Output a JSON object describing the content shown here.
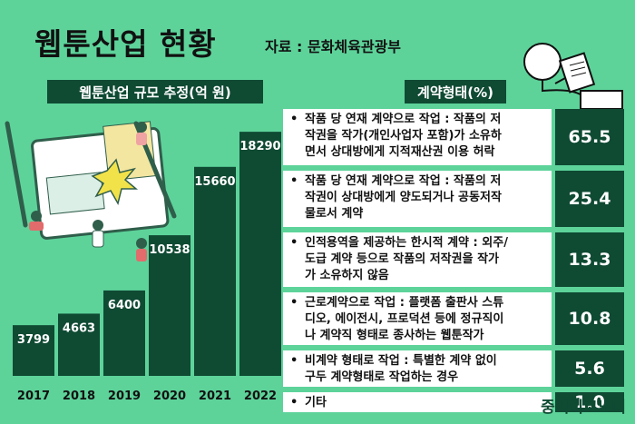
{
  "title": "웹툰산업 현황",
  "source": "자료 : 문화체육관광부",
  "left_panel_title": "웹툰산업 규모 추정(억 원)",
  "right_panel_title": "계약형태(%)",
  "brand": "중기이코노미",
  "bullet_char": "•",
  "colors": {
    "background": "#5dd39a",
    "dark_green": "#0f4a33",
    "white": "#ffffff"
  },
  "chart_data": [
    {
      "type": "bar",
      "title": "웹툰산업 규모 추정(억 원)",
      "categories": [
        "2017",
        "2018",
        "2019",
        "2020",
        "2021",
        "2022"
      ],
      "values": [
        3799,
        4663,
        6400,
        10538,
        15660,
        18290
      ],
      "ylim": [
        0,
        20000
      ],
      "grid": false,
      "legend": "none"
    },
    {
      "type": "table",
      "title": "계약형태(%)",
      "rows": [
        {
          "label": "작품 당 연재 계약으로 작업 : 작품의 저작권을 작가(개인사업자 포함)가 소유하면서 상대방에게 지적재산권 이용 허락",
          "lines": [
            "작품 당 연재 계약으로 작업 : 작품의 저",
            "작권을 작가(개인사업자 포함)가 소유하",
            "면서 상대방에게 지적재산권 이용 허락"
          ],
          "value": 65.5
        },
        {
          "label": "작품 당 연재 계약으로 작업 : 작품의 저작권이 상대방에게 양도되거나 공동저작물로서 계약",
          "lines": [
            "작품 당 연재 계약으로 작업 : 작품의 저",
            "작권이 상대방에게 양도되거나 공동저작",
            "물로서 계약"
          ],
          "value": 25.4
        },
        {
          "label": "인적용역을 제공하는 한시적 계약 : 외주/도급 계약 등으로 작품의 저작권을 작가가 소유하지 않음",
          "lines": [
            "인적용역을 제공하는 한시적 계약 : 외주/",
            "도급 계약 등으로 작품의 저작권을 작가",
            "가 소유하지 않음"
          ],
          "value": 13.3
        },
        {
          "label": "근로계약으로 작업 : 플랫폼 출판사 스튜디오, 에이전시, 프로덕션 등에 정규직이나 계약직 형태로 종사하는 웹툰작가",
          "lines": [
            "근로계약으로 작업 : 플랫폼 출판사 스튜",
            "디오, 에이전시, 프로덕션 등에 정규직이",
            "나 계약직 형태로 종사하는 웹툰작가"
          ],
          "value": 10.8
        },
        {
          "label": "비계약 형태로 작업 : 특별한 계약 없이 구두 계약형태로 작업하는 경우",
          "lines": [
            "비계약 형태로 작업 : 특별한 계약 없이",
            "구두 계약형태로 작업하는 경우"
          ],
          "value": 5.6
        },
        {
          "label": "기타",
          "lines": [
            "기타"
          ],
          "value": 1.0
        }
      ]
    }
  ]
}
